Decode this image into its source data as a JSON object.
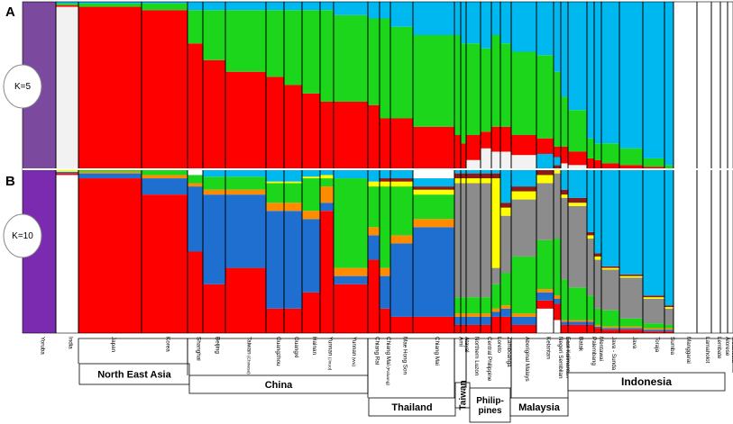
{
  "chart_data": [
    {
      "type": "bar",
      "panel": "A",
      "k_label": "K=5",
      "stacked": true,
      "ylim": [
        0,
        1
      ],
      "components": [
        {
          "color": "#7b4a9e",
          "values": [
            1,
            0,
            0,
            0,
            0,
            0,
            0,
            0,
            0,
            0,
            0,
            0,
            0,
            0,
            0,
            0,
            0,
            0,
            0,
            0,
            0,
            0,
            0,
            0,
            0,
            0,
            0,
            0,
            0,
            0,
            0,
            0,
            0
          ]
        },
        {
          "color": "#f2f2f2",
          "values": [
            0,
            0.97,
            0,
            0,
            0,
            0,
            0,
            0,
            0,
            0,
            0,
            0,
            0,
            0,
            0,
            0,
            0,
            0,
            0.05,
            0.12,
            0.1,
            0.1,
            0.08,
            0.08,
            0.05,
            0.03,
            0.02,
            0,
            0,
            0,
            0,
            0,
            0
          ]
        },
        {
          "color": "#ff0000",
          "values": [
            0,
            0.01,
            0.97,
            0.95,
            0.75,
            0.65,
            0.58,
            0.55,
            0.5,
            0.45,
            0.4,
            0.4,
            0.38,
            0.3,
            0.3,
            0.25,
            0.2,
            0.15,
            0.15,
            0.1,
            0.15,
            0.15,
            0.12,
            0.1,
            0.08,
            0.1,
            0.08,
            0.06,
            0.05,
            0.03,
            0.02,
            0.01,
            0
          ]
        },
        {
          "color": "#1cd61c",
          "values": [
            0,
            0.01,
            0.02,
            0.04,
            0.2,
            0.3,
            0.37,
            0.4,
            0.45,
            0.5,
            0.55,
            0.52,
            0.52,
            0.6,
            0.55,
            0.55,
            0.6,
            0.6,
            0.55,
            0.5,
            0.55,
            0.5,
            0.5,
            0.5,
            0.45,
            0.3,
            0.25,
            0.12,
            0.1,
            0.12,
            0.1,
            0.05,
            0.02
          ]
        },
        {
          "color": "#00b8f0",
          "values": [
            0,
            0.01,
            0.01,
            0.01,
            0.05,
            0.05,
            0.05,
            0.05,
            0.05,
            0.05,
            0.05,
            0.08,
            0.1,
            0.1,
            0.15,
            0.2,
            0.2,
            0.25,
            0.25,
            0.28,
            0.2,
            0.25,
            0.3,
            0.32,
            0.42,
            0.57,
            0.65,
            0.82,
            0.85,
            0.85,
            0.88,
            0.94,
            0.98
          ]
        }
      ]
    },
    {
      "type": "bar",
      "panel": "B",
      "k_label": "K=10",
      "stacked": true,
      "ylim": [
        0,
        1
      ],
      "components": [
        {
          "color": "#7b2bb0",
          "values": [
            1,
            0,
            0,
            0,
            0,
            0,
            0,
            0,
            0,
            0,
            0,
            0,
            0,
            0,
            0,
            0,
            0,
            0,
            0,
            0,
            0,
            0,
            0,
            0,
            0,
            0,
            0,
            0,
            0,
            0,
            0,
            0,
            0
          ]
        },
        {
          "color": "#ffffff",
          "values": [
            0,
            0.97,
            0,
            0,
            0,
            0,
            0,
            0,
            0,
            0,
            0,
            0,
            0,
            0,
            0,
            0,
            0,
            0,
            0,
            0,
            0,
            0,
            0,
            0.15,
            0.08,
            0,
            0,
            0,
            0,
            0,
            0,
            0,
            0
          ]
        },
        {
          "color": "#ff0000",
          "values": [
            0,
            0.01,
            0.95,
            0.85,
            0.5,
            0.3,
            0.4,
            0.15,
            0.15,
            0.25,
            0.75,
            0.3,
            0.45,
            0.15,
            0.1,
            0.1,
            0.05,
            0.05,
            0.05,
            0.05,
            0.1,
            0.1,
            0.05,
            0.05,
            0.1,
            0.05,
            0.05,
            0.05,
            0.03,
            0.02,
            0.02,
            0.01,
            0.01
          ]
        },
        {
          "color": "#1f6fd0",
          "values": [
            0,
            0.01,
            0.03,
            0.1,
            0.4,
            0.55,
            0.45,
            0.6,
            0.6,
            0.45,
            0.05,
            0.05,
            0.15,
            0.2,
            0.45,
            0.55,
            0.05,
            0.05,
            0.05,
            0.05,
            0.03,
            0.05,
            0.05,
            0.05,
            0.03,
            0.02,
            0.02,
            0.02,
            0.01,
            0.01,
            0.01,
            0.01,
            0.01
          ]
        },
        {
          "color": "#ff8c00",
          "values": [
            0,
            0,
            0.01,
            0.02,
            0.02,
            0.03,
            0.03,
            0.05,
            0.05,
            0.05,
            0.1,
            0.05,
            0.05,
            0.05,
            0.05,
            0.05,
            0.02,
            0.02,
            0.02,
            0.02,
            0.02,
            0.02,
            0.02,
            0.02,
            0.02,
            0.01,
            0.01,
            0.01,
            0.01,
            0.01,
            0.01,
            0.01,
            0.01
          ]
        },
        {
          "color": "#1cd61c",
          "values": [
            0,
            0,
            0.01,
            0.03,
            0.05,
            0.08,
            0.08,
            0.12,
            0.12,
            0.2,
            0.05,
            0.55,
            0.25,
            0.5,
            0.3,
            0.15,
            0.1,
            0.1,
            0.1,
            0.1,
            0.15,
            0.2,
            0.35,
            0.3,
            0.35,
            0.25,
            0.2,
            0.15,
            0.1,
            0.1,
            0.05,
            0.03,
            0.02
          ]
        },
        {
          "color": "#8c8c8c",
          "values": [
            0,
            0,
            0,
            0,
            0,
            0,
            0,
            0,
            0,
            0,
            0,
            0,
            0,
            0,
            0,
            0,
            0.7,
            0.7,
            0.7,
            0.7,
            0.1,
            0.35,
            0.35,
            0.35,
            0.4,
            0.5,
            0.5,
            0.35,
            0.3,
            0.25,
            0.25,
            0.15,
            0.1
          ]
        },
        {
          "color": "#ffff00",
          "values": [
            0,
            0.01,
            0,
            0,
            0,
            0,
            0,
            0.01,
            0.01,
            0.01,
            0.02,
            0,
            0.03,
            0.03,
            0.03,
            0.03,
            0.03,
            0.03,
            0.03,
            0.03,
            0.55,
            0.05,
            0.05,
            0.05,
            0.02,
            0.02,
            0.02,
            0.02,
            0.02,
            0.01,
            0.01,
            0.01,
            0.01
          ]
        },
        {
          "color": "#8b1a1a",
          "values": [
            0,
            0,
            0,
            0,
            0,
            0,
            0,
            0,
            0,
            0,
            0,
            0,
            0,
            0.02,
            0.02,
            0.02,
            0.03,
            0.03,
            0.03,
            0.03,
            0.03,
            0.03,
            0.03,
            0.03,
            0.03,
            0.03,
            0.03,
            0.02,
            0.02,
            0.01,
            0.01,
            0.01,
            0.01
          ]
        },
        {
          "color": "#00b8f0",
          "values": [
            0,
            0,
            0,
            0,
            0,
            0.04,
            0.04,
            0.07,
            0.07,
            0.04,
            0.03,
            0.05,
            0.07,
            0.05,
            0.05,
            0.05,
            0.02,
            0.02,
            0.02,
            0.02,
            0.02,
            0.2,
            0.1,
            0.1,
            0.05,
            0.12,
            0.17,
            0.38,
            0.51,
            0.59,
            0.64,
            0.77,
            0.84
          ]
        }
      ]
    }
  ],
  "populations": [
    {
      "label": "Yoruba",
      "start": 0,
      "end": 37
    },
    {
      "label": "India",
      "start": 37,
      "end": 62
    },
    {
      "label": "Japan",
      "start": 62,
      "end": 132
    },
    {
      "label": "Korea",
      "start": 132,
      "end": 183
    },
    {
      "label": "Shanghai",
      "start": 183,
      "end": 200
    },
    {
      "label": "Beijing",
      "start": 200,
      "end": 225
    },
    {
      "label": "Taiwan",
      "label_small": "(Chinese)",
      "start": 225,
      "end": 270
    },
    {
      "label": "Guangzhou",
      "start": 270,
      "end": 290
    },
    {
      "label": "Guangxi",
      "start": 290,
      "end": 310
    },
    {
      "label": "Hainan",
      "start": 310,
      "end": 330
    },
    {
      "label": "Yunnan",
      "label_small": "(Jinuo)",
      "start": 330,
      "end": 345
    },
    {
      "label": "Yunnan",
      "label_small": "(Wa)",
      "start": 345,
      "end": 383
    },
    {
      "label": "Chiang Rai",
      "start": 383,
      "end": 396
    },
    {
      "label": "Chiang Mai",
      "label_small": "(Paluang)",
      "start": 396,
      "end": 408
    },
    {
      "label": "Mae Hong Son",
      "start": 408,
      "end": 433
    },
    {
      "label": "Chiang Mai",
      "start": 433,
      "end": 479
    },
    {
      "label": "Ami",
      "start": 479,
      "end": 486
    },
    {
      "label": "Atayal",
      "start": 486,
      "end": 492
    },
    {
      "label": "Northern Luzon",
      "start": 492,
      "end": 508
    },
    {
      "label": "Central Philippine",
      "start": 508,
      "end": 520
    },
    {
      "label": "Loreto",
      "start": 520,
      "end": 530
    },
    {
      "label": "Zamboanga",
      "start": 530,
      "end": 542
    },
    {
      "label": "Aboriginal Malays",
      "start": 542,
      "end": 570
    },
    {
      "label": "Kelantan",
      "start": 570,
      "end": 589
    },
    {
      "label": "Negeri Sembilan",
      "start": 589,
      "end": 597
    },
    {
      "label": "East Kalimantan",
      "start": 597,
      "end": 605
    },
    {
      "label": "Batak",
      "start": 605,
      "end": 626
    },
    {
      "label": "Palembang",
      "start": 626,
      "end": 634
    },
    {
      "label": "Mentawai",
      "start": 634,
      "end": 642
    },
    {
      "label": "Java - Sunda",
      "start": 642,
      "end": 662
    },
    {
      "label": "Java",
      "start": 662,
      "end": 688
    },
    {
      "label": "Toraja",
      "start": 688,
      "end": 712
    },
    {
      "label": "Sumba",
      "start": 712,
      "end": 722
    },
    {
      "label": "Manggarai",
      "start": 722,
      "end": 748
    },
    {
      "label": "Lamaholot",
      "start": 748,
      "end": 764
    },
    {
      "label": "Lembate",
      "start": 764,
      "end": 774
    },
    {
      "label": "Alorese",
      "start": 774,
      "end": 782
    },
    {
      "label": "Melanesia",
      "start": 782,
      "end": 788
    }
  ],
  "regions": [
    {
      "label": "North East Asia",
      "bracket": [
        62,
        183
      ]
    },
    {
      "label": "China",
      "bracket": [
        183,
        383
      ]
    },
    {
      "label": "Thailand",
      "bracket": [
        383,
        479
      ]
    },
    {
      "label": "Taiwan",
      "bracket": [
        479,
        492
      ]
    },
    {
      "label": "Philip-\npines",
      "bracket": [
        492,
        542
      ]
    },
    {
      "label": "Malaysia",
      "bracket": [
        542,
        605
      ]
    },
    {
      "label": "Indonesia",
      "bracket": [
        605,
        788
      ]
    }
  ]
}
